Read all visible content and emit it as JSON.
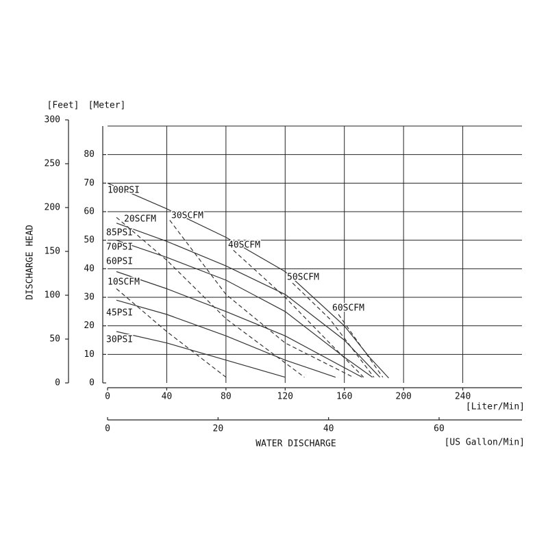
{
  "chart_data": {
    "type": "line",
    "x_label": "WATER DISCHARGE",
    "y_label": "DISCHARGE HEAD",
    "x_unit": "[Liter/Min]",
    "x2_unit": "[US Gallon/Min]",
    "y_unit": "[Meter]",
    "y2_unit": "[Feet]",
    "xlim": [
      0,
      280
    ],
    "xticks": [
      0,
      40,
      80,
      120,
      160,
      200,
      240
    ],
    "x2lim": [
      0,
      75
    ],
    "x2ticks": [
      0,
      20,
      40,
      60
    ],
    "ylim": [
      0,
      90
    ],
    "yticks": [
      0,
      10,
      20,
      30,
      40,
      50,
      60,
      70,
      80
    ],
    "y2lim": [
      0,
      300
    ],
    "y2ticks": [
      0,
      50,
      100,
      150,
      200,
      250,
      300
    ],
    "grid": true,
    "color": "#333333",
    "series": [
      {
        "name": "100PSI",
        "style": "solid",
        "x": [
          0,
          40,
          80,
          120,
          160,
          177,
          190
        ],
        "values": [
          70,
          61,
          51,
          39,
          20,
          9,
          1.7
        ]
      },
      {
        "name": "85PSI",
        "style": "solid",
        "x": [
          6,
          40,
          80,
          120,
          160,
          184
        ],
        "values": [
          56,
          49.6,
          41,
          31,
          15,
          2
        ]
      },
      {
        "name": "70PSI",
        "style": "solid",
        "x": [
          6,
          40,
          80,
          120,
          160,
          179
        ],
        "values": [
          50,
          44,
          36,
          25,
          9,
          2
        ]
      },
      {
        "name": "60PSI",
        "style": "solid",
        "x": [
          6,
          40,
          80,
          120,
          172
        ],
        "values": [
          39,
          33,
          25,
          16.5,
          2
        ]
      },
      {
        "name": "45PSI",
        "style": "solid",
        "x": [
          6,
          40,
          80,
          120,
          154
        ],
        "values": [
          29,
          24,
          16.5,
          8,
          2
        ]
      },
      {
        "name": "30PSI",
        "style": "solid",
        "x": [
          6,
          40,
          80,
          120
        ],
        "values": [
          18,
          14,
          8,
          2
        ]
      },
      {
        "name": "10SCFM",
        "style": "dashed",
        "x": [
          6,
          40,
          80
        ],
        "values": [
          33,
          18,
          2
        ]
      },
      {
        "name": "20SCFM",
        "style": "dashed",
        "x": [
          6,
          40,
          80,
          133
        ],
        "values": [
          58,
          43,
          22.5,
          2
        ]
      },
      {
        "name": "30SCFM",
        "style": "dashed",
        "x": [
          42,
          80,
          120,
          166
        ],
        "values": [
          57,
          31,
          14,
          2
        ]
      },
      {
        "name": "40SCFM",
        "style": "dashed",
        "x": [
          85,
          120,
          150,
          173
        ],
        "values": [
          46.5,
          30,
          14,
          2
        ]
      },
      {
        "name": "50SCFM",
        "style": "dashed",
        "x": [
          125,
          150,
          180
        ],
        "values": [
          35,
          22.5,
          2
        ]
      },
      {
        "name": "60SCFM",
        "style": "dashed",
        "x": [
          156,
          186
        ],
        "values": [
          24,
          2
        ]
      }
    ]
  }
}
